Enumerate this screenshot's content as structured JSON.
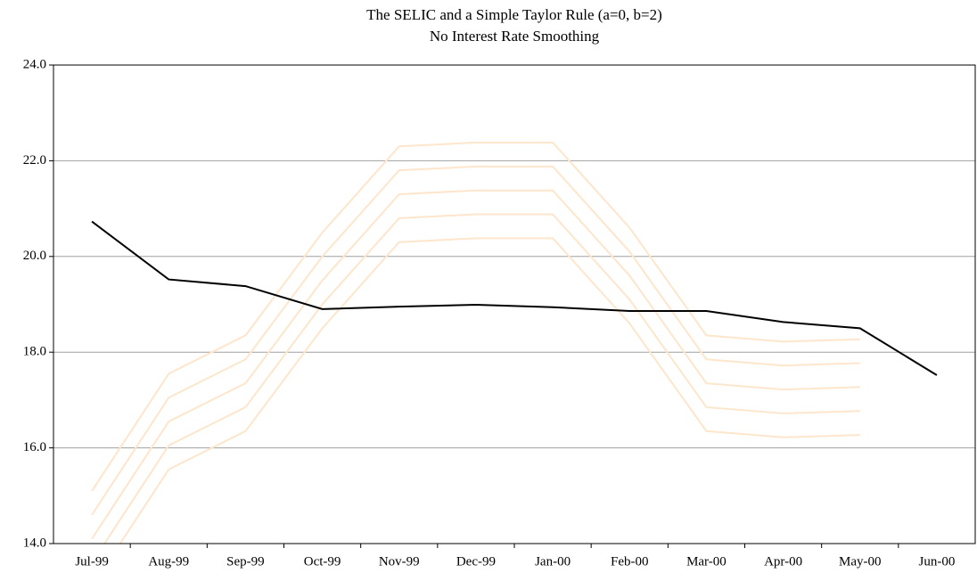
{
  "chart_data": {
    "type": "line",
    "title": "The SELIC and a Simple Taylor Rule (a=0, b=2)",
    "subtitle": "No Interest Rate Smoothing",
    "categories": [
      "Jul-99",
      "Aug-99",
      "Sep-99",
      "Oct-99",
      "Nov-99",
      "Dec-99",
      "Jan-00",
      "Feb-00",
      "Mar-00",
      "Apr-00",
      "May-00",
      "Jun-00"
    ],
    "series": [
      {
        "color": "#fde6cc",
        "values": [
          15.1,
          17.55,
          18.35,
          20.5,
          22.3,
          22.38,
          22.38,
          20.6,
          18.35,
          18.22,
          18.27,
          null
        ]
      },
      {
        "color": "#fde6cc",
        "values": [
          14.6,
          17.05,
          17.85,
          20.0,
          21.8,
          21.88,
          21.88,
          20.1,
          17.85,
          17.72,
          17.77,
          null
        ]
      },
      {
        "color": "#fde6cc",
        "values": [
          14.1,
          16.55,
          17.35,
          19.5,
          21.3,
          21.38,
          21.38,
          19.6,
          17.35,
          17.22,
          17.27,
          null
        ]
      },
      {
        "color": "#fde6cc",
        "values": [
          13.6,
          16.05,
          16.85,
          19.0,
          20.8,
          20.88,
          20.88,
          19.1,
          16.85,
          16.72,
          16.77,
          null
        ]
      },
      {
        "color": "#fde6cc",
        "values": [
          13.1,
          15.55,
          16.35,
          18.5,
          20.3,
          20.38,
          20.38,
          18.6,
          16.35,
          16.22,
          16.27,
          null
        ]
      },
      {
        "color": "#000000",
        "values": [
          20.73,
          19.52,
          19.38,
          18.9,
          18.95,
          18.99,
          18.94,
          18.86,
          18.86,
          18.63,
          18.5,
          17.52
        ]
      }
    ],
    "ylim": [
      14,
      24
    ],
    "yticks": [
      {
        "value": 14,
        "label": "14.0"
      },
      {
        "value": 16,
        "label": "16.0"
      },
      {
        "value": 18,
        "label": "18.0"
      },
      {
        "value": 20,
        "label": "20.0"
      },
      {
        "value": 22,
        "label": "22.0"
      },
      {
        "value": 24,
        "label": "24.0"
      }
    ],
    "grid": true
  }
}
